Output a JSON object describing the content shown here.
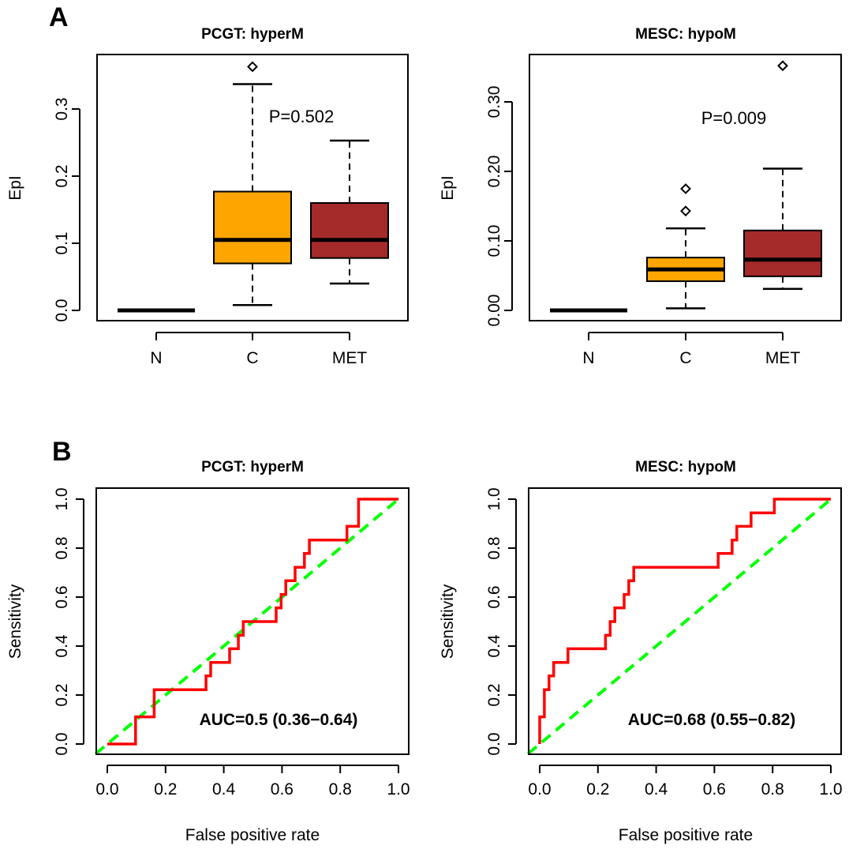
{
  "panel_labels": {
    "a": "A",
    "b": "B"
  },
  "colors": {
    "n": "#000000",
    "c": "#FFA500",
    "met": "#A52A2A",
    "roc": "#FF0000",
    "diag": "#00FF00"
  },
  "chart_data": [
    {
      "type": "box",
      "title": "PCGT: hyperM",
      "ylabel": "EpI",
      "xlabel": "",
      "ylim": [
        0,
        0.36
      ],
      "yticks": [
        "0.0",
        "0.1",
        "0.2",
        "0.3"
      ],
      "categories": [
        "N",
        "C",
        "MET"
      ],
      "boxes": [
        {
          "group": "N",
          "q1": 0,
          "median": 0,
          "q3": 0,
          "whisker_low": 0,
          "whisker_high": 0,
          "outliers": []
        },
        {
          "group": "C",
          "q1": 0.07,
          "median": 0.105,
          "q3": 0.177,
          "whisker_low": 0.008,
          "whisker_high": 0.337,
          "outliers": [
            0.363
          ]
        },
        {
          "group": "MET",
          "q1": 0.078,
          "median": 0.105,
          "q3": 0.16,
          "whisker_low": 0.04,
          "whisker_high": 0.253,
          "outliers": []
        }
      ],
      "annotation": "P=0.502"
    },
    {
      "type": "box",
      "title": "MESC: hypoM",
      "ylabel": "EpI",
      "xlabel": "",
      "ylim": [
        0,
        0.35
      ],
      "yticks": [
        "0.00",
        "0.10",
        "0.20",
        "0.30"
      ],
      "categories": [
        "N",
        "C",
        "MET"
      ],
      "boxes": [
        {
          "group": "N",
          "q1": 0,
          "median": 0,
          "q3": 0,
          "whisker_low": 0,
          "whisker_high": 0,
          "outliers": []
        },
        {
          "group": "C",
          "q1": 0.042,
          "median": 0.059,
          "q3": 0.076,
          "whisker_low": 0.003,
          "whisker_high": 0.118,
          "outliers": [
            0.143,
            0.175
          ]
        },
        {
          "group": "MET",
          "q1": 0.049,
          "median": 0.073,
          "q3": 0.115,
          "whisker_low": 0.031,
          "whisker_high": 0.204,
          "outliers": [
            0.352
          ]
        }
      ],
      "annotation": "P=0.009"
    },
    {
      "type": "line",
      "title": "PCGT: hyperM",
      "xlabel": "False positive rate",
      "ylabel": "Sensitivity",
      "xlim": [
        0,
        1
      ],
      "ylim": [
        0,
        1
      ],
      "xticks": [
        "0.0",
        "0.2",
        "0.4",
        "0.6",
        "0.8",
        "1.0"
      ],
      "yticks": [
        "0.0",
        "0.2",
        "0.4",
        "0.6",
        "0.8",
        "1.0"
      ],
      "series": [
        {
          "x": [
            0,
            0.097,
            0.097,
            0.161,
            0.161,
            0.339,
            0.339,
            0.355,
            0.355,
            0.42,
            0.42,
            0.45,
            0.45,
            0.467,
            0.467,
            0.58,
            0.58,
            0.597,
            0.597,
            0.613,
            0.613,
            0.645,
            0.645,
            0.677,
            0.677,
            0.694,
            0.694,
            0.71,
            0.71,
            0.823,
            0.823,
            0.863,
            0.863,
            1.0
          ],
          "y": [
            0,
            0,
            0.111,
            0.111,
            0.222,
            0.222,
            0.278,
            0.278,
            0.333,
            0.333,
            0.389,
            0.389,
            0.444,
            0.444,
            0.5,
            0.5,
            0.556,
            0.556,
            0.611,
            0.611,
            0.667,
            0.667,
            0.722,
            0.722,
            0.778,
            0.778,
            0.833,
            0.833,
            0.833,
            0.833,
            0.889,
            0.889,
            1.0,
            1.0
          ]
        },
        {
          "x": [
            0,
            1
          ],
          "y": [
            0,
            1
          ]
        }
      ],
      "annotation": "AUC=0.5 (0.36−0.64)"
    },
    {
      "type": "line",
      "title": "MESC: hypoM",
      "xlabel": "False positive rate",
      "ylabel": "Sensitivity",
      "xlim": [
        0,
        1
      ],
      "ylim": [
        0,
        1
      ],
      "xticks": [
        "0.0",
        "0.2",
        "0.4",
        "0.6",
        "0.8",
        "1.0"
      ],
      "yticks": [
        "0.0",
        "0.2",
        "0.4",
        "0.6",
        "0.8",
        "1.0"
      ],
      "series": [
        {
          "x": [
            0,
            0,
            0.016,
            0.016,
            0.032,
            0.032,
            0.048,
            0.048,
            0.065,
            0.065,
            0.097,
            0.097,
            0.226,
            0.226,
            0.242,
            0.242,
            0.258,
            0.258,
            0.29,
            0.29,
            0.306,
            0.306,
            0.323,
            0.323,
            0.339,
            0.339,
            0.613,
            0.613,
            0.661,
            0.661,
            0.677,
            0.677,
            0.726,
            0.726,
            0.806,
            0.806,
            1.0
          ],
          "y": [
            0,
            0.111,
            0.111,
            0.222,
            0.222,
            0.278,
            0.278,
            0.333,
            0.333,
            0.333,
            0.333,
            0.389,
            0.389,
            0.444,
            0.444,
            0.5,
            0.5,
            0.556,
            0.556,
            0.611,
            0.611,
            0.667,
            0.667,
            0.722,
            0.722,
            0.722,
            0.722,
            0.778,
            0.778,
            0.833,
            0.833,
            0.889,
            0.889,
            0.944,
            0.944,
            1.0,
            1.0
          ]
        },
        {
          "x": [
            0,
            1
          ],
          "y": [
            0,
            1
          ]
        }
      ],
      "annotation": "AUC=0.68 (0.55−0.82)"
    }
  ]
}
